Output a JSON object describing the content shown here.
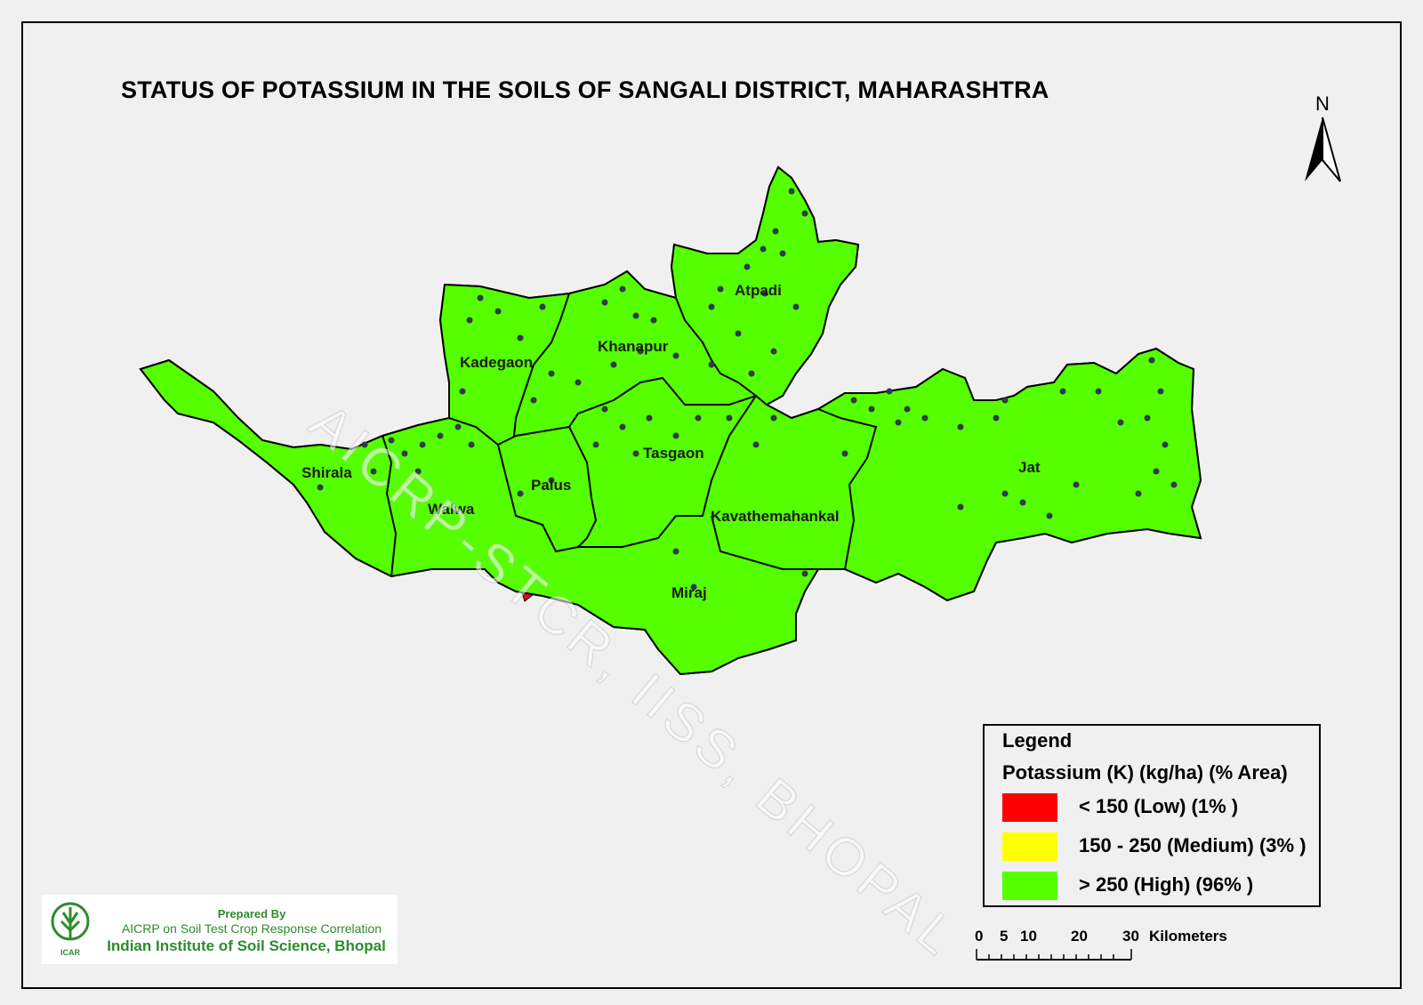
{
  "title": "STATUS OF POTASSIUM IN THE SOILS OF SANGALI  DISTRICT, MAHARASHTRA",
  "north_label": "N",
  "watermark": "AICRP-STCR, IISS, BHOPAL",
  "districts": [
    "Atpadi",
    "Khanapur",
    "Kadegaon",
    "Shirala",
    "Walwa",
    "Palus",
    "Tasgaon",
    "Kavathemahankal",
    "Jat",
    "Miraj"
  ],
  "legend": {
    "title": "Legend",
    "subtitle": "Potassium (K) (kg/ha) (% Area)",
    "items": [
      {
        "label": "< 150 (Low) (1% )",
        "color": "#ff0000"
      },
      {
        "label": "150 - 250 (Medium) (3% )",
        "color": "#ffff00"
      },
      {
        "label": "> 250 (High) (96% )",
        "color": "#55ff00"
      }
    ]
  },
  "scale_bar": {
    "ticks": [
      "0",
      "5",
      "10",
      "20",
      "30"
    ],
    "unit": "Kilometers"
  },
  "credit": {
    "prepared_by": "Prepared By",
    "org_line1": "AICRP on Soil Test Crop Response Correlation",
    "org_line2": "Indian Institute of Soil Science, Bhopal",
    "logo_text": "ICAR"
  },
  "colors": {
    "high": "#55ff00",
    "medium": "#ffff99",
    "low": "#ff0000",
    "sample_point": "#2f3a4a"
  }
}
